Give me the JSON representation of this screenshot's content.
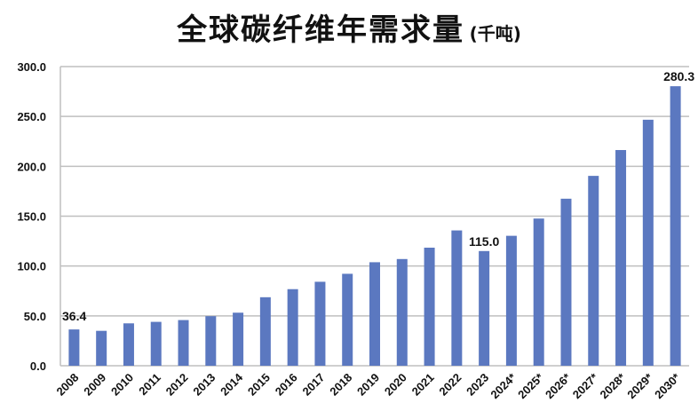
{
  "chart_data": {
    "type": "bar",
    "title": "全球碳纤维年需求量",
    "unit": "(千吨)",
    "categories": [
      "2008",
      "2009",
      "2010",
      "2011",
      "2012",
      "2013",
      "2014",
      "2015",
      "2016",
      "2017",
      "2018",
      "2019",
      "2020",
      "2021",
      "2022",
      "2023",
      "2024*",
      "2025*",
      "2026*",
      "2027*",
      "2028*",
      "2029*",
      "2030*"
    ],
    "values": [
      36.4,
      35.0,
      42.5,
      44.0,
      45.8,
      49.7,
      53.2,
      68.7,
      76.8,
      84.2,
      92.2,
      103.8,
      107.0,
      118.4,
      135.7,
      115.0,
      130.3,
      147.6,
      167.5,
      190.4,
      216.3,
      246.7,
      280.3
    ],
    "data_labels": {
      "2008": "36.4",
      "2023": "115.0",
      "2030*": "280.3"
    },
    "yticks": [
      "0.0",
      "50.0",
      "100.0",
      "150.0",
      "200.0",
      "250.0",
      "300.0"
    ],
    "ylim": [
      0,
      300
    ],
    "grid": true,
    "bar_color": "#5b78c0",
    "grid_color": "#bfbfbf"
  }
}
